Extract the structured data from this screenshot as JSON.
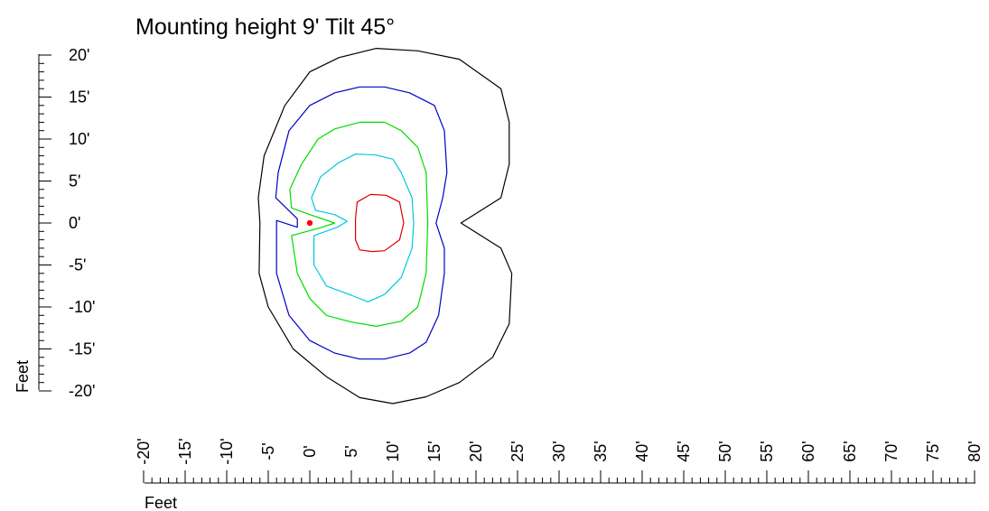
{
  "chart_data": {
    "type": "contour",
    "title": "Mounting height 9'  Tilt 45°",
    "xlabel": "Feet",
    "ylabel": "Feet",
    "xlim": [
      -20,
      80
    ],
    "ylim": [
      -20,
      20
    ],
    "x_ticks": [
      "-20'",
      "-15'",
      "-10'",
      "-5'",
      "0'",
      "5'",
      "10'",
      "15'",
      "20'",
      "25'",
      "30'",
      "35'",
      "40'",
      "45'",
      "50'",
      "55'",
      "60'",
      "65'",
      "70'",
      "75'",
      "80'"
    ],
    "y_ticks": [
      "20'",
      "15'",
      "10'",
      "5'",
      "0'",
      "-5'",
      "-10'",
      "-15'",
      "-20'"
    ],
    "grid": false,
    "fixture": {
      "x": 0,
      "y": 0,
      "color": "#ff0000"
    },
    "series": [
      {
        "color": "#000000",
        "points": [
          [
            -6.0,
            0.0
          ],
          [
            -6.1,
            -6
          ],
          [
            -5,
            -10
          ],
          [
            -2,
            -15
          ],
          [
            2,
            -18.3
          ],
          [
            6,
            -20.8
          ],
          [
            10,
            -21.5
          ],
          [
            14,
            -20.7
          ],
          [
            18,
            -19
          ],
          [
            22,
            -16
          ],
          [
            24,
            -12
          ],
          [
            24.3,
            -6
          ],
          [
            23,
            -3
          ],
          [
            18.2,
            0
          ],
          [
            23,
            3
          ],
          [
            24,
            7
          ],
          [
            24,
            12
          ],
          [
            23,
            16
          ],
          [
            18,
            19.5
          ],
          [
            13,
            20.5
          ],
          [
            8,
            20.8
          ],
          [
            3.5,
            19.7
          ],
          [
            0,
            18
          ],
          [
            -3,
            14
          ],
          [
            -5.5,
            8
          ],
          [
            -6.2,
            3
          ]
        ]
      },
      {
        "color": "#0000c8",
        "points": [
          [
            -4,
            0.3
          ],
          [
            -4,
            -6
          ],
          [
            -2.5,
            -11
          ],
          [
            0,
            -14
          ],
          [
            3,
            -15.5
          ],
          [
            6,
            -16.2
          ],
          [
            9,
            -16.2
          ],
          [
            12,
            -15.5
          ],
          [
            14,
            -14.2
          ],
          [
            15.5,
            -11
          ],
          [
            16.2,
            -6
          ],
          [
            16.2,
            -3
          ],
          [
            15.2,
            0
          ],
          [
            16,
            3
          ],
          [
            16.5,
            6
          ],
          [
            16.2,
            11
          ],
          [
            15,
            14
          ],
          [
            12,
            15.5
          ],
          [
            9,
            16.2
          ],
          [
            6,
            16.2
          ],
          [
            3,
            15.5
          ],
          [
            0,
            14
          ],
          [
            -2.5,
            11
          ],
          [
            -3.8,
            6
          ],
          [
            -4.1,
            3
          ],
          [
            -1.5,
            0.5
          ],
          [
            -1.5,
            -0.5
          ]
        ]
      },
      {
        "color": "#00dc00",
        "points": [
          [
            -2.2,
            -1.5
          ],
          [
            -1.5,
            -6
          ],
          [
            0,
            -9
          ],
          [
            2,
            -11
          ],
          [
            5,
            -11.8
          ],
          [
            8,
            -12.3
          ],
          [
            11,
            -11.7
          ],
          [
            13,
            -10
          ],
          [
            14,
            -6
          ],
          [
            14.2,
            0
          ],
          [
            14,
            6
          ],
          [
            13,
            9
          ],
          [
            11,
            11
          ],
          [
            9,
            12
          ],
          [
            6,
            12
          ],
          [
            3,
            11.2
          ],
          [
            1,
            10
          ],
          [
            -1,
            7
          ],
          [
            -2.4,
            4
          ],
          [
            -2.2,
            1.8
          ],
          [
            0,
            1
          ],
          [
            3,
            0
          ],
          [
            1.5,
            -0.5
          ]
        ]
      },
      {
        "color": "#00c8dc",
        "points": [
          [
            0.5,
            -1.5
          ],
          [
            0.5,
            -5
          ],
          [
            2,
            -7.5
          ],
          [
            5,
            -8.6
          ],
          [
            7,
            -9.4
          ],
          [
            9,
            -8.5
          ],
          [
            11,
            -6.5
          ],
          [
            12.3,
            -3
          ],
          [
            12.5,
            0
          ],
          [
            12.3,
            3
          ],
          [
            11,
            6
          ],
          [
            10,
            7.6
          ],
          [
            8,
            8.1
          ],
          [
            5.5,
            8.2
          ],
          [
            3.5,
            7.2
          ],
          [
            1.3,
            5.5
          ],
          [
            0.2,
            3
          ],
          [
            0.7,
            1.5
          ],
          [
            3,
            1
          ],
          [
            4.5,
            0.2
          ],
          [
            3.3,
            -0.5
          ]
        ]
      },
      {
        "color": "#dc0000",
        "points": [
          [
            5.5,
            0.5
          ],
          [
            5.5,
            -2
          ],
          [
            6,
            -3.2
          ],
          [
            7.5,
            -3.4
          ],
          [
            9,
            -3.3
          ],
          [
            10.8,
            -2
          ],
          [
            11.3,
            0
          ],
          [
            10.8,
            2.5
          ],
          [
            9.2,
            3.3
          ],
          [
            7.3,
            3.4
          ],
          [
            5.7,
            2.5
          ]
        ]
      }
    ]
  }
}
